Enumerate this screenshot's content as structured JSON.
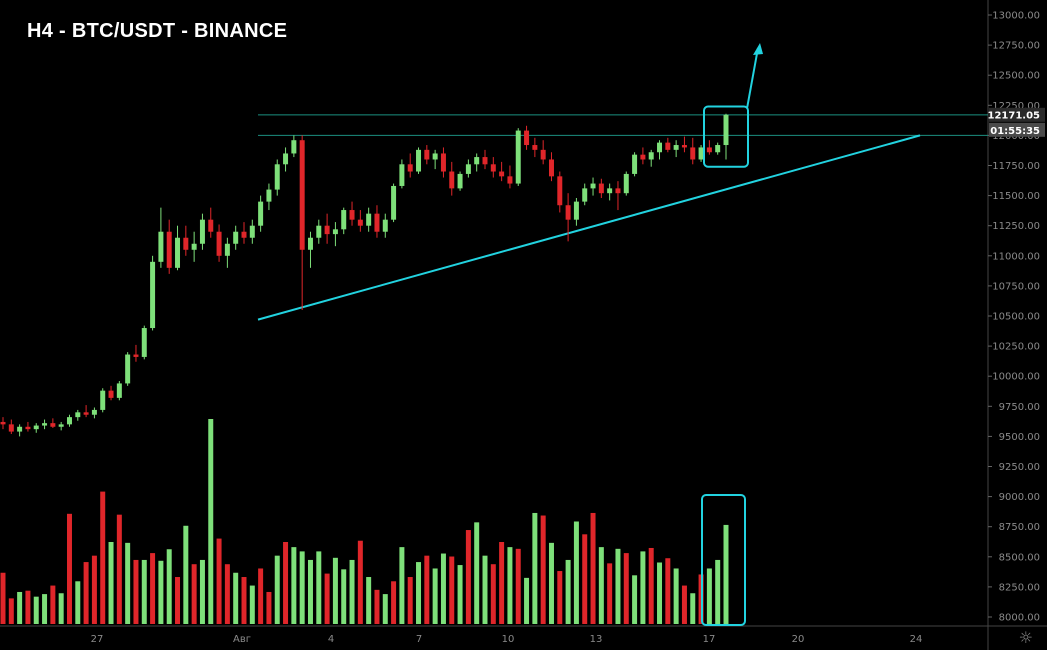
{
  "title": "H4 - BTC/USDT - BINANCE",
  "chart_data": {
    "type": "candlestick",
    "title": "H4 - BTC/USDT - BINANCE",
    "symbol": "BTC/USDT",
    "exchange": "BINANCE",
    "timeframe": "H4",
    "y_axis": {
      "min": 8000,
      "max": 13000,
      "ticks": [
        "13000.00",
        "12750.00",
        "12500.00",
        "12250.00",
        "12000.00",
        "11750.00",
        "11500.00",
        "11250.00",
        "11000.00",
        "10750.00",
        "10500.00",
        "10250.00",
        "10000.00",
        "9750.00",
        "9500.00",
        "9250.00",
        "9000.00",
        "8750.00",
        "8500.00",
        "8250.00",
        "8000.00"
      ]
    },
    "x_axis": {
      "ticks": [
        "27",
        "Авг",
        "4",
        "7",
        "10",
        "13",
        "17",
        "20",
        "24"
      ]
    },
    "current_price_label": "12171.05",
    "countdown_label": "01:55:35",
    "colors": {
      "up": "#7ee07a",
      "down": "#e0262a",
      "volume_up": "#7ee07a",
      "volume_down": "#e0262a",
      "annotation": "#22d3e0",
      "resistance": "#1f9f8f",
      "axis_text": "#8a8a8a",
      "price_tag_bg": "#2a2a2a",
      "countdown_bg": "#4a4a4a"
    },
    "ohlc": [
      [
        9620,
        9660,
        9560,
        9600
      ],
      [
        9600,
        9640,
        9520,
        9540
      ],
      [
        9540,
        9600,
        9500,
        9580
      ],
      [
        9580,
        9620,
        9540,
        9560
      ],
      [
        9560,
        9610,
        9530,
        9590
      ],
      [
        9590,
        9640,
        9560,
        9610
      ],
      [
        9610,
        9650,
        9570,
        9580
      ],
      [
        9580,
        9620,
        9550,
        9600
      ],
      [
        9600,
        9680,
        9580,
        9660
      ],
      [
        9660,
        9720,
        9630,
        9700
      ],
      [
        9700,
        9760,
        9660,
        9680
      ],
      [
        9680,
        9740,
        9650,
        9720
      ],
      [
        9720,
        9900,
        9700,
        9880
      ],
      [
        9880,
        9920,
        9800,
        9820
      ],
      [
        9820,
        9960,
        9800,
        9940
      ],
      [
        9940,
        10200,
        9920,
        10180
      ],
      [
        10180,
        10260,
        10120,
        10160
      ],
      [
        10160,
        10420,
        10140,
        10400
      ],
      [
        10400,
        11000,
        10380,
        10950
      ],
      [
        10950,
        11400,
        10900,
        11200
      ],
      [
        11200,
        11300,
        10850,
        10900
      ],
      [
        10900,
        11250,
        10880,
        11150
      ],
      [
        11150,
        11250,
        11000,
        11050
      ],
      [
        11050,
        11200,
        10950,
        11100
      ],
      [
        11100,
        11350,
        11050,
        11300
      ],
      [
        11300,
        11400,
        11150,
        11200
      ],
      [
        11200,
        11260,
        10950,
        11000
      ],
      [
        11000,
        11150,
        10900,
        11100
      ],
      [
        11100,
        11250,
        11050,
        11200
      ],
      [
        11200,
        11280,
        11100,
        11150
      ],
      [
        11150,
        11300,
        11100,
        11250
      ],
      [
        11250,
        11500,
        11200,
        11450
      ],
      [
        11450,
        11600,
        11380,
        11550
      ],
      [
        11550,
        11800,
        11500,
        11760
      ],
      [
        11760,
        11900,
        11700,
        11850
      ],
      [
        11850,
        12000,
        11820,
        11960
      ],
      [
        11960,
        12000,
        10550,
        11050
      ],
      [
        11050,
        11200,
        10900,
        11150
      ],
      [
        11150,
        11300,
        11100,
        11250
      ],
      [
        11250,
        11350,
        11100,
        11180
      ],
      [
        11180,
        11280,
        11080,
        11220
      ],
      [
        11220,
        11400,
        11180,
        11380
      ],
      [
        11380,
        11450,
        11250,
        11300
      ],
      [
        11300,
        11380,
        11200,
        11250
      ],
      [
        11250,
        11400,
        11200,
        11350
      ],
      [
        11350,
        11420,
        11150,
        11200
      ],
      [
        11200,
        11350,
        11150,
        11300
      ],
      [
        11300,
        11600,
        11280,
        11580
      ],
      [
        11580,
        11800,
        11560,
        11760
      ],
      [
        11760,
        11850,
        11650,
        11700
      ],
      [
        11700,
        11900,
        11680,
        11880
      ],
      [
        11880,
        11920,
        11760,
        11800
      ],
      [
        11800,
        11880,
        11720,
        11850
      ],
      [
        11850,
        11900,
        11650,
        11700
      ],
      [
        11700,
        11780,
        11500,
        11560
      ],
      [
        11560,
        11700,
        11540,
        11680
      ],
      [
        11680,
        11800,
        11650,
        11760
      ],
      [
        11760,
        11850,
        11700,
        11820
      ],
      [
        11820,
        11880,
        11720,
        11760
      ],
      [
        11760,
        11820,
        11650,
        11700
      ],
      [
        11700,
        11780,
        11620,
        11660
      ],
      [
        11660,
        11750,
        11560,
        11600
      ],
      [
        11600,
        12060,
        11580,
        12040
      ],
      [
        12040,
        12080,
        11880,
        11920
      ],
      [
        11920,
        11980,
        11820,
        11880
      ],
      [
        11880,
        11960,
        11760,
        11800
      ],
      [
        11800,
        11860,
        11620,
        11660
      ],
      [
        11660,
        11700,
        11360,
        11420
      ],
      [
        11420,
        11520,
        11120,
        11300
      ],
      [
        11300,
        11480,
        11250,
        11450
      ],
      [
        11450,
        11600,
        11420,
        11560
      ],
      [
        11560,
        11650,
        11500,
        11600
      ],
      [
        11600,
        11640,
        11480,
        11520
      ],
      [
        11520,
        11600,
        11460,
        11560
      ],
      [
        11560,
        11620,
        11380,
        11520
      ],
      [
        11520,
        11700,
        11500,
        11680
      ],
      [
        11680,
        11860,
        11660,
        11840
      ],
      [
        11840,
        11900,
        11760,
        11800
      ],
      [
        11800,
        11880,
        11740,
        11860
      ],
      [
        11860,
        11960,
        11800,
        11940
      ],
      [
        11940,
        11980,
        11860,
        11880
      ],
      [
        11880,
        11960,
        11820,
        11920
      ],
      [
        11920,
        11990,
        11860,
        11900
      ],
      [
        11900,
        11980,
        11760,
        11800
      ],
      [
        11800,
        11920,
        11780,
        11900
      ],
      [
        11900,
        11960,
        11840,
        11860
      ],
      [
        11860,
        11940,
        11840,
        11920
      ],
      [
        11920,
        12180,
        11800,
        12171
      ]
    ],
    "volume": [
      [
        120,
        0
      ],
      [
        60,
        0
      ],
      [
        75,
        1
      ],
      [
        78,
        0
      ],
      [
        64,
        1
      ],
      [
        70,
        1
      ],
      [
        90,
        0
      ],
      [
        72,
        1
      ],
      [
        258,
        0
      ],
      [
        100,
        1
      ],
      [
        145,
        0
      ],
      [
        160,
        0
      ],
      [
        310,
        0
      ],
      [
        192,
        1
      ],
      [
        256,
        0
      ],
      [
        190,
        1
      ],
      [
        150,
        0
      ],
      [
        150,
        1
      ],
      [
        166,
        0
      ],
      [
        148,
        1
      ],
      [
        175,
        1
      ],
      [
        110,
        0
      ],
      [
        230,
        1
      ],
      [
        140,
        0
      ],
      [
        150,
        1
      ],
      [
        480,
        1
      ],
      [
        200,
        0
      ],
      [
        140,
        0
      ],
      [
        120,
        1
      ],
      [
        110,
        0
      ],
      [
        90,
        1
      ],
      [
        130,
        0
      ],
      [
        75,
        0
      ],
      [
        160,
        1
      ],
      [
        192,
        0
      ],
      [
        180,
        1
      ],
      [
        170,
        1
      ],
      [
        150,
        1
      ],
      [
        170,
        1
      ],
      [
        118,
        0
      ],
      [
        155,
        1
      ],
      [
        128,
        1
      ],
      [
        150,
        1
      ],
      [
        195,
        0
      ],
      [
        110,
        1
      ],
      [
        80,
        0
      ],
      [
        70,
        1
      ],
      [
        100,
        0
      ],
      [
        180,
        1
      ],
      [
        110,
        0
      ],
      [
        145,
        1
      ],
      [
        160,
        0
      ],
      [
        130,
        1
      ],
      [
        165,
        1
      ],
      [
        158,
        0
      ],
      [
        138,
        1
      ],
      [
        220,
        0
      ],
      [
        238,
        1
      ],
      [
        160,
        1
      ],
      [
        140,
        0
      ],
      [
        192,
        0
      ],
      [
        180,
        1
      ],
      [
        176,
        0
      ],
      [
        108,
        1
      ],
      [
        260,
        1
      ],
      [
        254,
        0
      ],
      [
        190,
        1
      ],
      [
        124,
        0
      ],
      [
        150,
        1
      ],
      [
        240,
        1
      ],
      [
        210,
        0
      ],
      [
        260,
        0
      ],
      [
        180,
        1
      ],
      [
        142,
        0
      ],
      [
        176,
        1
      ],
      [
        166,
        0
      ],
      [
        114,
        1
      ],
      [
        170,
        1
      ],
      [
        178,
        0
      ],
      [
        144,
        1
      ],
      [
        154,
        0
      ],
      [
        130,
        1
      ],
      [
        90,
        0
      ],
      [
        72,
        1
      ],
      [
        116,
        0
      ],
      [
        130,
        1
      ],
      [
        150,
        1
      ],
      [
        232,
        1
      ]
    ],
    "annotations": {
      "resistance_levels": [
        12000,
        12170
      ],
      "trendline": {
        "from": [
          10470,
          0.247
        ],
        "to": [
          12000,
          0.879
        ]
      },
      "breakout_arrow": true
    }
  }
}
